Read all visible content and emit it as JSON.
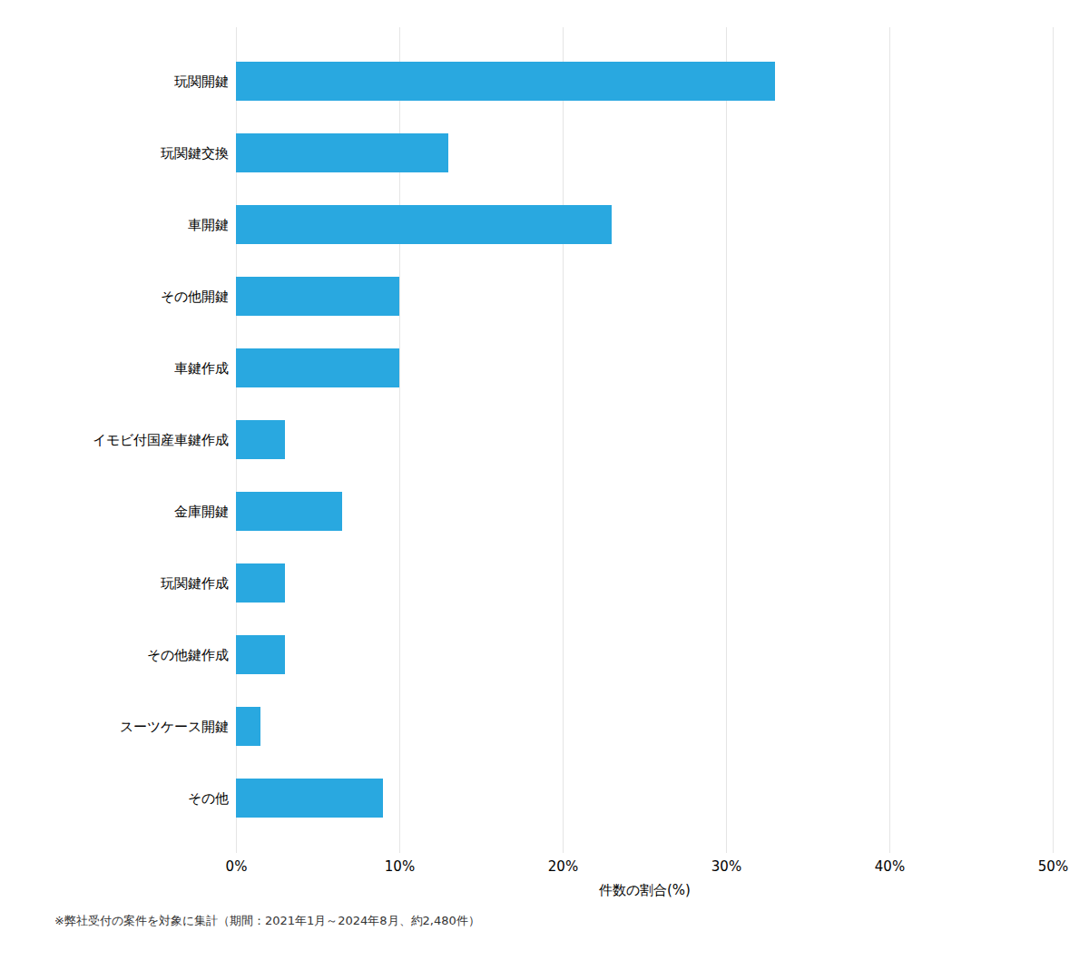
{
  "chart_data": {
    "type": "bar",
    "orientation": "horizontal",
    "categories": [
      "その他",
      "スーツケース開鍵",
      "その他鍵作成",
      "玩関鍵作成",
      "金庫開鍵",
      "イモビ付国産車鍵作成",
      "車鍵作成",
      "その他開鍵",
      "車開鍵",
      "玩関鍵交換",
      "玩関開鍵"
    ],
    "values": [
      9.0,
      1.5,
      3.0,
      3.0,
      6.5,
      3.0,
      10.0,
      10.0,
      23.0,
      13.0,
      33.0
    ],
    "color": "#29a8e0",
    "xlim": [
      0,
      50
    ],
    "xticks": [
      {
        "value": 0,
        "label": "0%"
      },
      {
        "value": 10,
        "label": "10%"
      },
      {
        "value": 20,
        "label": "20%"
      },
      {
        "value": 30,
        "label": "30%"
      },
      {
        "value": 40,
        "label": "40%"
      },
      {
        "value": 50,
        "label": "50%"
      }
    ],
    "xlabel": "件数の割合(%)",
    "grid": true,
    "footnote": "※弊社受付の案件を対象に集計（期間：2021年1月～2024年8月、約2,480件）"
  }
}
